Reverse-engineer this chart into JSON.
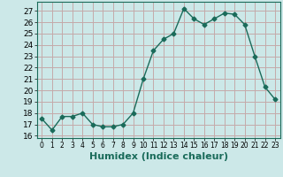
{
  "x": [
    0,
    1,
    2,
    3,
    4,
    5,
    6,
    7,
    8,
    9,
    10,
    11,
    12,
    13,
    14,
    15,
    16,
    17,
    18,
    19,
    20,
    21,
    22,
    23
  ],
  "y": [
    17.5,
    16.5,
    17.7,
    17.7,
    18.0,
    17.0,
    16.8,
    16.8,
    17.0,
    18.0,
    21.0,
    23.5,
    24.5,
    25.0,
    27.2,
    26.3,
    25.8,
    26.3,
    26.8,
    26.7,
    25.8,
    23.0,
    20.3,
    19.2
  ],
  "xlabel": "Humidex (Indice chaleur)",
  "ylim": [
    15.8,
    27.8
  ],
  "xlim": [
    -0.5,
    23.5
  ],
  "yticks": [
    16,
    17,
    18,
    19,
    20,
    21,
    22,
    23,
    24,
    25,
    26,
    27
  ],
  "xticks": [
    0,
    1,
    2,
    3,
    4,
    5,
    6,
    7,
    8,
    9,
    10,
    11,
    12,
    13,
    14,
    15,
    16,
    17,
    18,
    19,
    20,
    21,
    22,
    23
  ],
  "line_color": "#1a6b5a",
  "marker": "D",
  "marker_size": 2.5,
  "bg_color": "#cce8e8",
  "grid_color": "#c4aaaa",
  "axis_fontsize": 7,
  "tick_fontsize": 6.5,
  "xlabel_fontsize": 8
}
